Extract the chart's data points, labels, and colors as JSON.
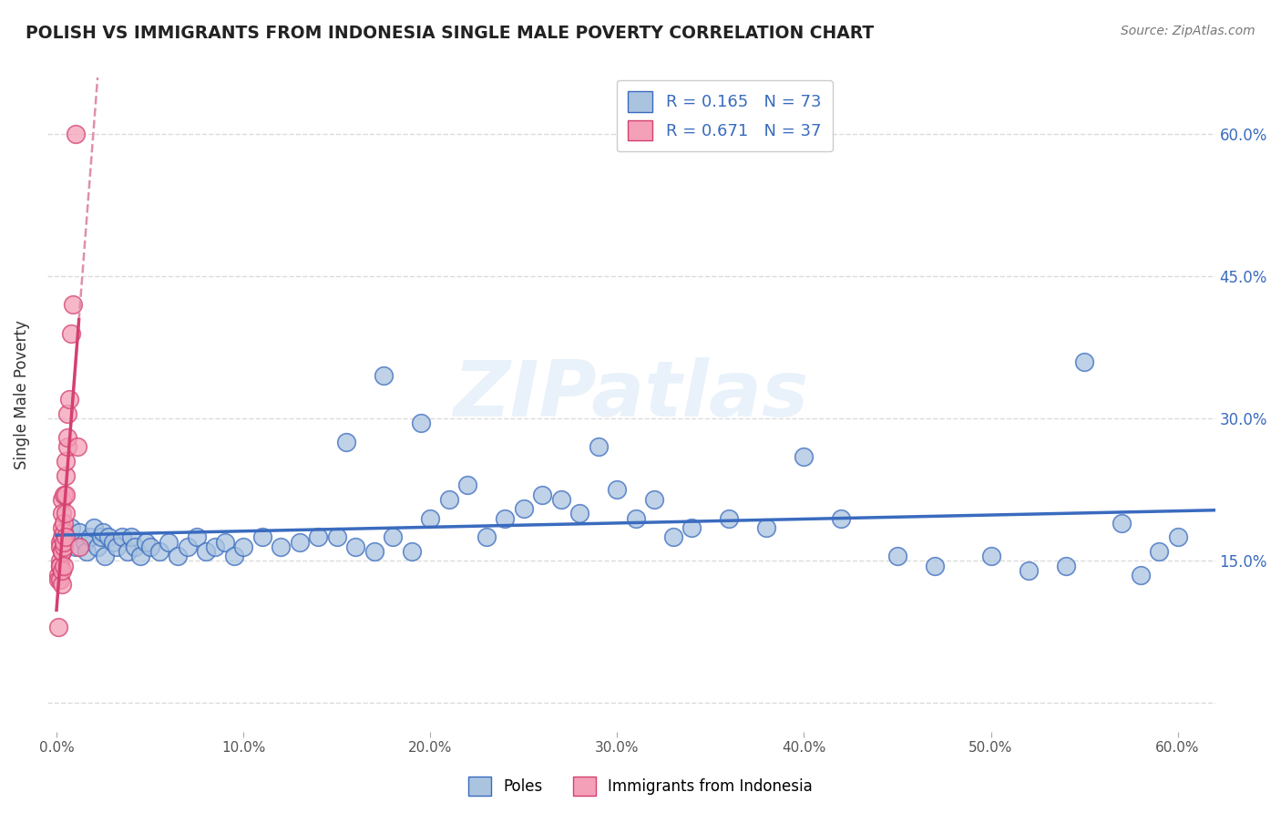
{
  "title": "POLISH VS IMMIGRANTS FROM INDONESIA SINGLE MALE POVERTY CORRELATION CHART",
  "source": "Source: ZipAtlas.com",
  "ylabel": "Single Male Poverty",
  "legend_labels": [
    "Poles",
    "Immigrants from Indonesia"
  ],
  "r_poles": 0.165,
  "n_poles": 73,
  "r_indonesia": 0.671,
  "n_indonesia": 37,
  "xlim": [
    -0.005,
    0.62
  ],
  "ylim": [
    -0.03,
    0.68
  ],
  "yticks": [
    0.0,
    0.15,
    0.3,
    0.45,
    0.6
  ],
  "ytick_labels": [
    "",
    "15.0%",
    "30.0%",
    "45.0%",
    "60.0%"
  ],
  "xticks": [
    0.0,
    0.1,
    0.2,
    0.3,
    0.4,
    0.5,
    0.6
  ],
  "xtick_labels": [
    "0.0%",
    "10.0%",
    "20.0%",
    "30.0%",
    "40.0%",
    "50.0%",
    "60.0%"
  ],
  "color_poles": "#aac4e0",
  "color_indonesia": "#f4a0b8",
  "color_poles_line": "#3a6bbf",
  "color_indonesia_line": "#d44070",
  "color_indonesia_dashed": "#e090a8",
  "background_color": "#ffffff",
  "grid_color": "#cccccc",
  "watermark": "ZIPatlas",
  "poles_x": [
    0.005,
    0.008,
    0.01,
    0.012,
    0.015,
    0.016,
    0.018,
    0.02,
    0.022,
    0.024,
    0.025,
    0.026,
    0.028,
    0.03,
    0.032,
    0.035,
    0.038,
    0.04,
    0.042,
    0.045,
    0.048,
    0.05,
    0.055,
    0.06,
    0.065,
    0.07,
    0.075,
    0.08,
    0.085,
    0.09,
    0.095,
    0.1,
    0.11,
    0.12,
    0.13,
    0.14,
    0.15,
    0.16,
    0.17,
    0.18,
    0.19,
    0.2,
    0.21,
    0.22,
    0.23,
    0.24,
    0.25,
    0.26,
    0.27,
    0.28,
    0.29,
    0.3,
    0.31,
    0.32,
    0.33,
    0.34,
    0.36,
    0.38,
    0.4,
    0.42,
    0.45,
    0.47,
    0.5,
    0.52,
    0.54,
    0.55,
    0.57,
    0.58,
    0.59,
    0.6,
    0.155,
    0.175,
    0.195
  ],
  "poles_y": [
    0.175,
    0.185,
    0.165,
    0.18,
    0.17,
    0.16,
    0.175,
    0.185,
    0.165,
    0.175,
    0.18,
    0.155,
    0.175,
    0.17,
    0.165,
    0.175,
    0.16,
    0.175,
    0.165,
    0.155,
    0.17,
    0.165,
    0.16,
    0.17,
    0.155,
    0.165,
    0.175,
    0.16,
    0.165,
    0.17,
    0.155,
    0.165,
    0.175,
    0.165,
    0.17,
    0.175,
    0.175,
    0.165,
    0.16,
    0.175,
    0.16,
    0.195,
    0.215,
    0.23,
    0.175,
    0.195,
    0.205,
    0.22,
    0.215,
    0.2,
    0.27,
    0.225,
    0.195,
    0.215,
    0.175,
    0.185,
    0.195,
    0.185,
    0.26,
    0.195,
    0.155,
    0.145,
    0.155,
    0.14,
    0.145,
    0.36,
    0.19,
    0.135,
    0.16,
    0.175,
    0.275,
    0.345,
    0.295
  ],
  "indonesia_x": [
    0.001,
    0.001,
    0.001,
    0.002,
    0.002,
    0.002,
    0.002,
    0.002,
    0.002,
    0.003,
    0.003,
    0.003,
    0.003,
    0.003,
    0.003,
    0.003,
    0.003,
    0.004,
    0.004,
    0.004,
    0.004,
    0.004,
    0.004,
    0.005,
    0.005,
    0.005,
    0.005,
    0.005,
    0.006,
    0.006,
    0.006,
    0.007,
    0.008,
    0.009,
    0.01,
    0.011,
    0.012
  ],
  "indonesia_y": [
    0.135,
    0.13,
    0.08,
    0.15,
    0.17,
    0.145,
    0.13,
    0.165,
    0.145,
    0.125,
    0.16,
    0.14,
    0.175,
    0.185,
    0.16,
    0.215,
    0.2,
    0.18,
    0.165,
    0.19,
    0.22,
    0.17,
    0.145,
    0.24,
    0.22,
    0.175,
    0.255,
    0.2,
    0.27,
    0.305,
    0.28,
    0.32,
    0.39,
    0.42,
    0.6,
    0.27,
    0.165
  ]
}
